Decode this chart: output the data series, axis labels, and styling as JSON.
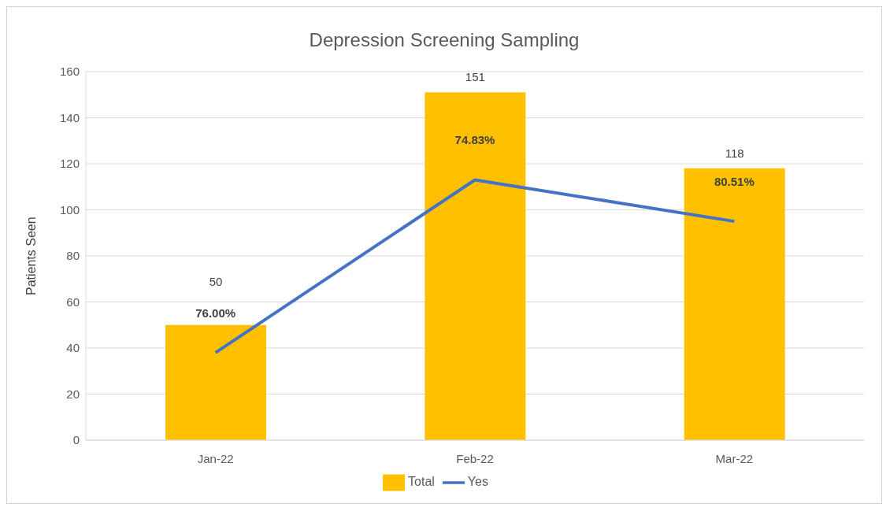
{
  "chart_data": {
    "type": "bar",
    "title": "Depression Screening Sampling",
    "ylabel": "Patients Seen",
    "categories": [
      "Jan-22",
      "Feb-22",
      "Mar-22"
    ],
    "series": [
      {
        "name": "Total",
        "color": "#ffc000",
        "values": [
          50,
          151,
          118
        ],
        "value_labels": [
          "50",
          "151",
          "118"
        ]
      },
      {
        "name": "Yes",
        "type": "line",
        "color": "#4472c4",
        "values": [
          38,
          113,
          95
        ]
      }
    ],
    "annotations": [
      {
        "text": "76.00%",
        "x": "Jan-22",
        "y": 38
      },
      {
        "text": "74.83%",
        "x": "Feb-22",
        "y": 113
      },
      {
        "text": "80.51%",
        "x": "Mar-22",
        "y": 95
      }
    ],
    "ylim": [
      0,
      160
    ],
    "yticks": [
      0,
      20,
      40,
      60,
      80,
      100,
      120,
      140,
      160
    ],
    "grid": "y",
    "legend": "bottom",
    "marker": "none",
    "line_style": "solid"
  }
}
